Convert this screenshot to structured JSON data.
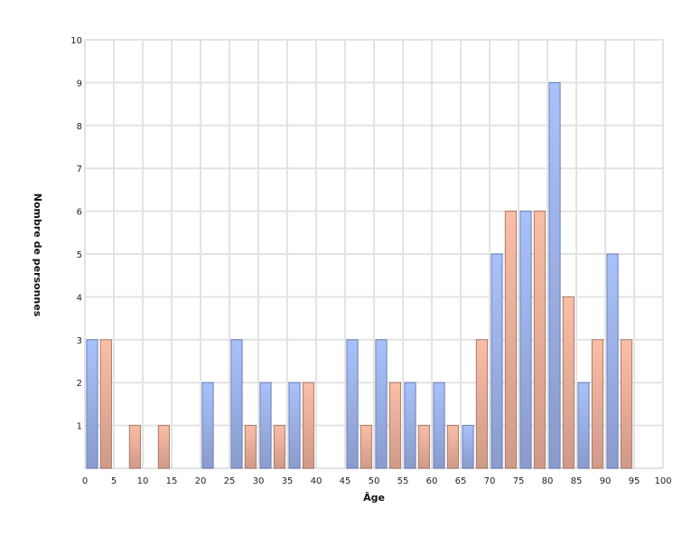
{
  "chart_data": {
    "type": "bar",
    "title": "",
    "xlabel": "Âge",
    "ylabel": "Nombre de personnes",
    "xlim": [
      0,
      100
    ],
    "ylim": [
      0,
      10
    ],
    "x_ticks": [
      0,
      5,
      10,
      15,
      20,
      25,
      30,
      35,
      40,
      45,
      50,
      55,
      60,
      65,
      70,
      75,
      80,
      85,
      90,
      95,
      100
    ],
    "y_ticks": [
      1,
      2,
      3,
      4,
      5,
      6,
      7,
      8,
      9,
      10
    ],
    "grid": true,
    "legend": null,
    "bin_width": 5,
    "categories": [
      0,
      5,
      10,
      15,
      20,
      25,
      30,
      35,
      40,
      45,
      50,
      55,
      60,
      65,
      70,
      75,
      80,
      85,
      90,
      95
    ],
    "series": [
      {
        "name": "series-blue",
        "color": "#a7bff7",
        "border": "#6a7fb5",
        "values": [
          3,
          0,
          0,
          0,
          2,
          3,
          2,
          2,
          0,
          3,
          3,
          2,
          2,
          1,
          5,
          6,
          9,
          2,
          5,
          0
        ]
      },
      {
        "name": "series-orange",
        "color": "#f9bba3",
        "border": "#a87a6a",
        "values": [
          3,
          1,
          1,
          0,
          0,
          1,
          1,
          2,
          0,
          1,
          2,
          1,
          1,
          3,
          6,
          6,
          4,
          3,
          3,
          0
        ]
      }
    ]
  }
}
